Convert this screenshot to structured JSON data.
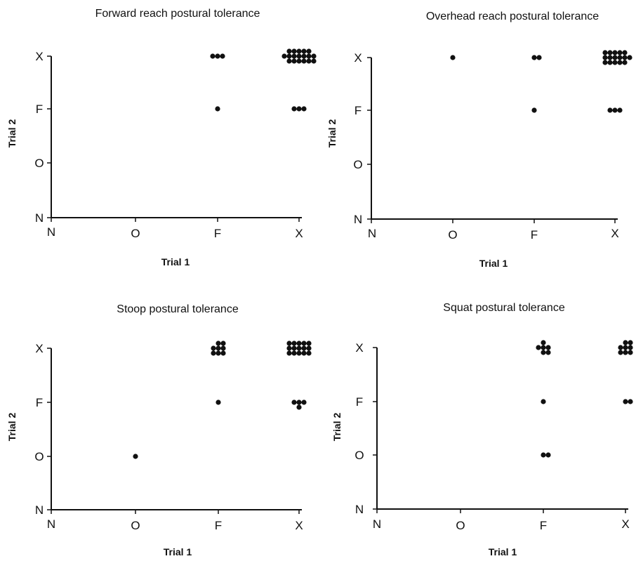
{
  "chart_data": [
    {
      "type": "scatter",
      "title": "Forward reach postural tolerance",
      "xlabel": "Trial 1",
      "ylabel": "Trial 2",
      "x_categories": [
        "N",
        "O",
        "F",
        "X"
      ],
      "y_categories": [
        "N",
        "O",
        "F",
        "X"
      ],
      "grid": false,
      "points": [
        {
          "x": "F",
          "y": "X",
          "count": 3
        },
        {
          "x": "F",
          "y": "F",
          "count": 1
        },
        {
          "x": "X",
          "y": "X",
          "count": 18
        },
        {
          "x": "X",
          "y": "F",
          "count": 3
        }
      ]
    },
    {
      "type": "scatter",
      "title": "Overhead reach postural tolerance",
      "xlabel": "Trial 1",
      "ylabel": "Trial 2",
      "x_categories": [
        "N",
        "O",
        "F",
        "X"
      ],
      "y_categories": [
        "N",
        "O",
        "F",
        "X"
      ],
      "grid": false,
      "points": [
        {
          "x": "O",
          "y": "X",
          "count": 1
        },
        {
          "x": "F",
          "y": "X",
          "count": 2
        },
        {
          "x": "F",
          "y": "F",
          "count": 1
        },
        {
          "x": "X",
          "y": "X",
          "count": 16
        },
        {
          "x": "X",
          "y": "F",
          "count": 3
        }
      ]
    },
    {
      "type": "scatter",
      "title": "Stoop postural tolerance",
      "xlabel": "Trial 1",
      "ylabel": "Trial 2",
      "x_categories": [
        "N",
        "O",
        "F",
        "X"
      ],
      "y_categories": [
        "N",
        "O",
        "F",
        "X"
      ],
      "grid": false,
      "points": [
        {
          "x": "O",
          "y": "O",
          "count": 1
        },
        {
          "x": "F",
          "y": "X",
          "count": 8
        },
        {
          "x": "F",
          "y": "F",
          "count": 1
        },
        {
          "x": "X",
          "y": "X",
          "count": 15
        },
        {
          "x": "X",
          "y": "F",
          "count": 4
        }
      ]
    },
    {
      "type": "scatter",
      "title": "Squat postural tolerance",
      "xlabel": "Trial 1",
      "ylabel": "Trial 2",
      "x_categories": [
        "N",
        "O",
        "F",
        "X"
      ],
      "y_categories": [
        "N",
        "O",
        "F",
        "X"
      ],
      "grid": false,
      "points": [
        {
          "x": "F",
          "y": "X",
          "count": 6
        },
        {
          "x": "F",
          "y": "F",
          "count": 1
        },
        {
          "x": "F",
          "y": "O",
          "count": 2
        },
        {
          "x": "X",
          "y": "X",
          "count": 8
        },
        {
          "x": "X",
          "y": "F",
          "count": 2
        }
      ]
    }
  ]
}
